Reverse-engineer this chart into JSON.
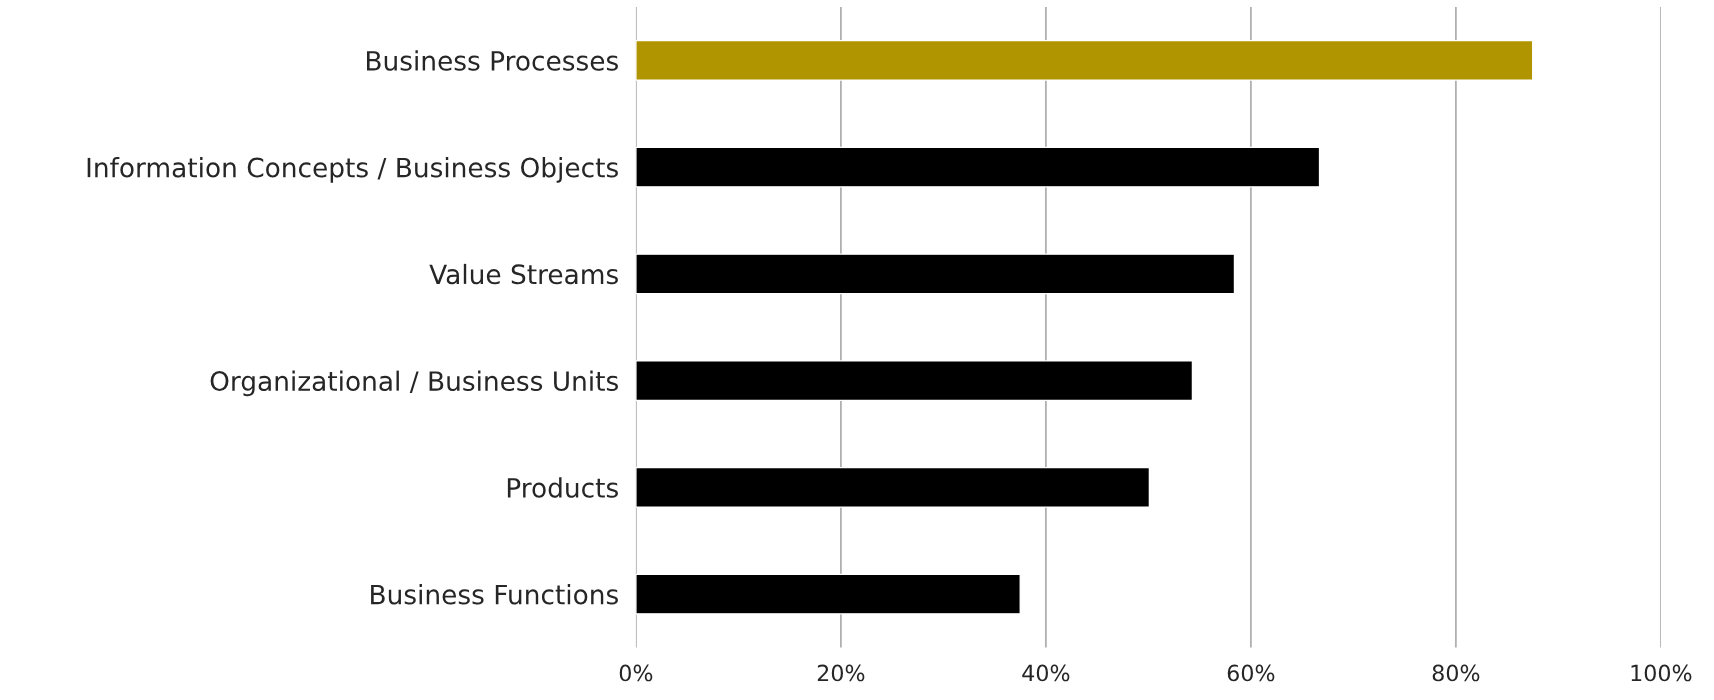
{
  "chart_data": {
    "type": "bar",
    "orientation": "horizontal",
    "categories": [
      "Business Processes",
      "Information Concepts / Business Objects",
      "Value Streams",
      "Organizational / Business Units",
      "Products",
      "Business Functions"
    ],
    "values": [
      87.5,
      66.7,
      58.4,
      54.3,
      50.1,
      37.5
    ],
    "colors": [
      "#b09500",
      "#000000",
      "#000000",
      "#000000",
      "#000000",
      "#000000"
    ],
    "xlim": [
      0,
      100
    ],
    "xticks": [
      {
        "value": 0,
        "label": "0%"
      },
      {
        "value": 20,
        "label": "20%"
      },
      {
        "value": 40,
        "label": "40%"
      },
      {
        "value": 60,
        "label": "60%"
      },
      {
        "value": 80,
        "label": "80%"
      },
      {
        "value": 100,
        "label": "100%"
      }
    ],
    "grid": "x",
    "legend": false
  }
}
